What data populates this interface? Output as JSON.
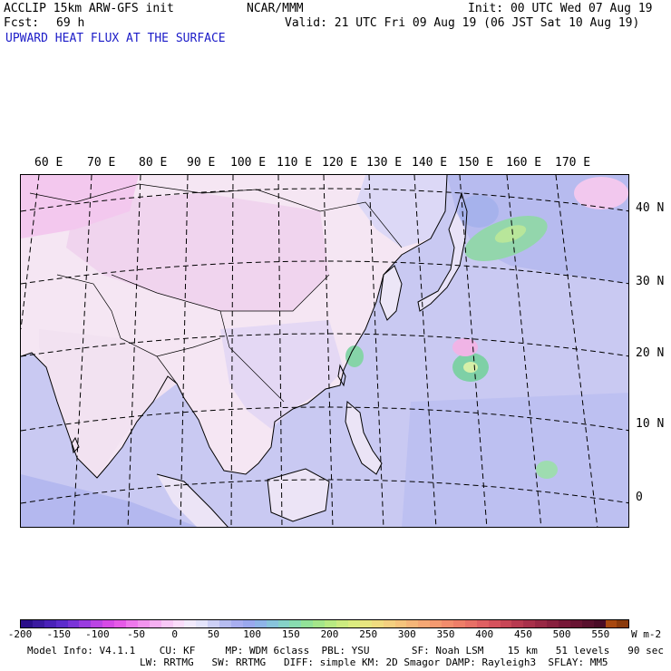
{
  "header": {
    "model": "ACCLIP 15km ARW-GFS init",
    "org": "NCAR/MMM",
    "init": "Init: 00 UTC Wed 07 Aug 19",
    "fcst_label": "Fcst:",
    "fcst_value": "69 h",
    "valid": "Valid: 21 UTC Fri 09 Aug 19 (06 JST Sat 10 Aug 19)",
    "field": "UPWARD HEAT FLUX AT THE SURFACE"
  },
  "lon_labels": [
    "60 E",
    "70 E",
    "80 E",
    "90 E",
    "100 E",
    "110 E",
    "120 E",
    "130 E",
    "140 E",
    "150 E",
    "160 E",
    "170 E"
  ],
  "lat_labels": [
    "40 N",
    "30 N",
    "20 N",
    "10 N",
    "0"
  ],
  "colorbar": {
    "ticks": [
      "-200",
      "-150",
      "-100",
      "-50",
      "0",
      "50",
      "100",
      "150",
      "200",
      "250",
      "300",
      "350",
      "400",
      "450",
      "500",
      "550"
    ],
    "units": "W m-2",
    "colors": [
      "#2a0f8a",
      "#3a1aa0",
      "#4a22b8",
      "#5c2ccc",
      "#7a34d8",
      "#9a3ce0",
      "#bb44e4",
      "#d64ae6",
      "#e65ae8",
      "#ee78ec",
      "#f294ee",
      "#f6b0f2",
      "#f8c8f6",
      "#fadcfa",
      "#f2eafc",
      "#e4e4fb",
      "#cdd0f5",
      "#b6bcf0",
      "#a8aef0",
      "#9aa8ee",
      "#8fb4e8",
      "#88c4dc",
      "#86d2c8",
      "#88dcb0",
      "#92e298",
      "#a4e68a",
      "#b8ea82",
      "#cceb80",
      "#dcec80",
      "#e8e680",
      "#f0dc80",
      "#f4d080",
      "#f6c47c",
      "#f6b678",
      "#f6a874",
      "#f49a70",
      "#f28c6c",
      "#ee7e68",
      "#e87066",
      "#e06062",
      "#d6525c",
      "#c84656",
      "#b83a50",
      "#a8304a",
      "#982844",
      "#88203e",
      "#781838",
      "#681432",
      "#58102c",
      "#4a0c26",
      "#a84810",
      "#8a3a0c"
    ]
  },
  "footer": {
    "line1": "Model Info: V4.1.1    CU: KF     MP: WDM 6class  PBL: YSU       SF: Noah LSM    15 km   51 levels   90 sec",
    "line2": "LW: RRTMG   SW: RRTMG   DIFF: simple KM: 2D Smagor DAMP: Rayleigh3  SFLAY: MM5"
  },
  "map_colors": {
    "ocean": "#c9c9f2",
    "land_warm": "#f5e6f3",
    "land_pink": "#f0c4ea",
    "green": "#8fd6a6",
    "blue_dark": "#9ea8ec"
  }
}
